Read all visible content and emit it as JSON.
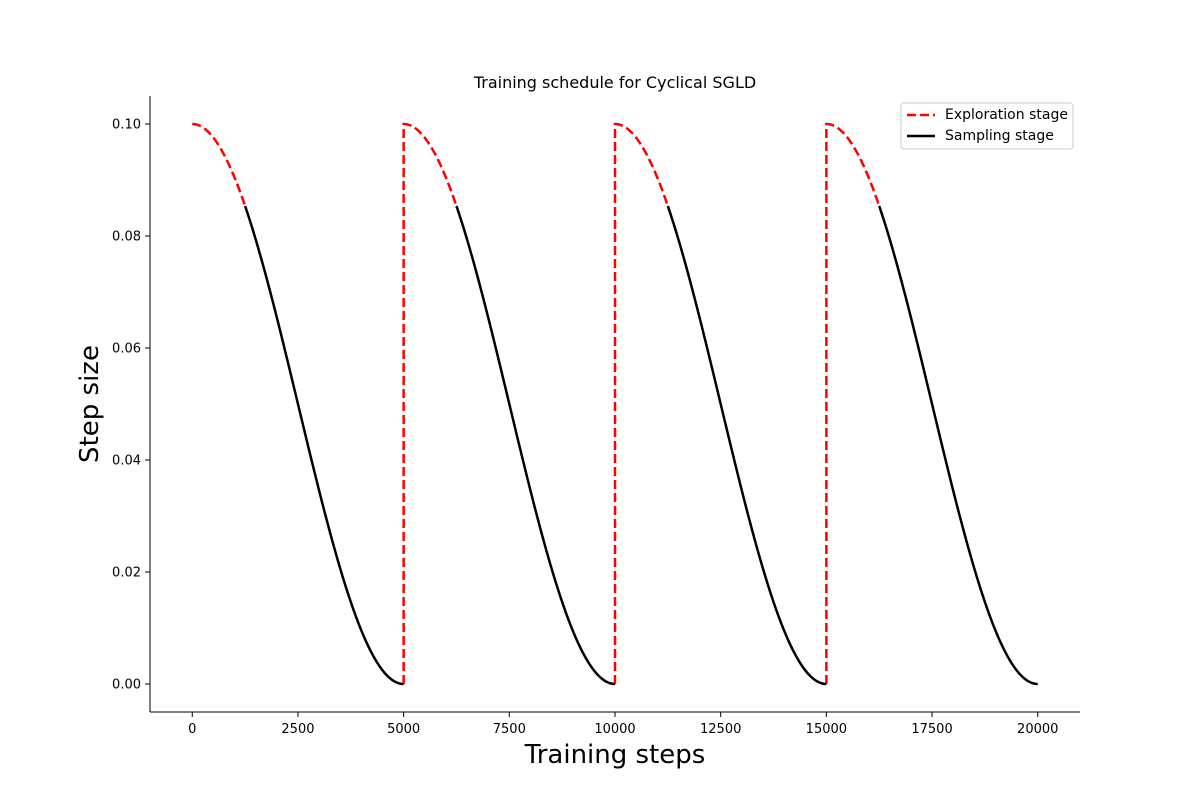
{
  "chart_data": {
    "type": "line",
    "title": "Training schedule for Cyclical SGLD",
    "xlabel": "Training steps",
    "ylabel": "Step size",
    "xlim": [
      -1000,
      21000
    ],
    "ylim": [
      -0.005,
      0.105
    ],
    "xticks": [
      0,
      2500,
      5000,
      7500,
      10000,
      12500,
      15000,
      17500,
      20000
    ],
    "xtick_labels": [
      "0",
      "2500",
      "5000",
      "7500",
      "10000",
      "12500",
      "15000",
      "17500",
      "20000"
    ],
    "yticks": [
      0.0,
      0.02,
      0.04,
      0.06,
      0.08,
      0.1
    ],
    "ytick_labels": [
      "0.00",
      "0.02",
      "0.04",
      "0.06",
      "0.08",
      "0.10"
    ],
    "grid": false,
    "legend_position": "top-right",
    "schedule": {
      "max_step_size": 0.1,
      "cycle_length": 5000,
      "num_cycles": 4,
      "exploration_fraction": 0.25
    },
    "series": [
      {
        "name": "Exploration stage",
        "color": "#ff0000",
        "style": "dashed",
        "segments": [
          {
            "x": [
              0,
              1250
            ],
            "y": [
              0.1,
              0.0854
            ]
          },
          {
            "x": [
              5000,
              6250
            ],
            "y": [
              0.1,
              0.0854
            ]
          },
          {
            "x": [
              10000,
              11250
            ],
            "y": [
              0.1,
              0.0854
            ]
          },
          {
            "x": [
              15000,
              16250
            ],
            "y": [
              0.1,
              0.0854
            ]
          }
        ],
        "jumps_at": [
          5000,
          10000,
          15000
        ]
      },
      {
        "name": "Sampling stage",
        "color": "#000000",
        "style": "solid",
        "segments": [
          {
            "x": [
              1250,
              5000
            ],
            "y": [
              0.0854,
              0.0
            ]
          },
          {
            "x": [
              6250,
              10000
            ],
            "y": [
              0.0854,
              0.0
            ]
          },
          {
            "x": [
              11250,
              15000
            ],
            "y": [
              0.0854,
              0.0
            ]
          },
          {
            "x": [
              16250,
              20000
            ],
            "y": [
              0.0854,
              0.0
            ]
          }
        ]
      }
    ]
  }
}
